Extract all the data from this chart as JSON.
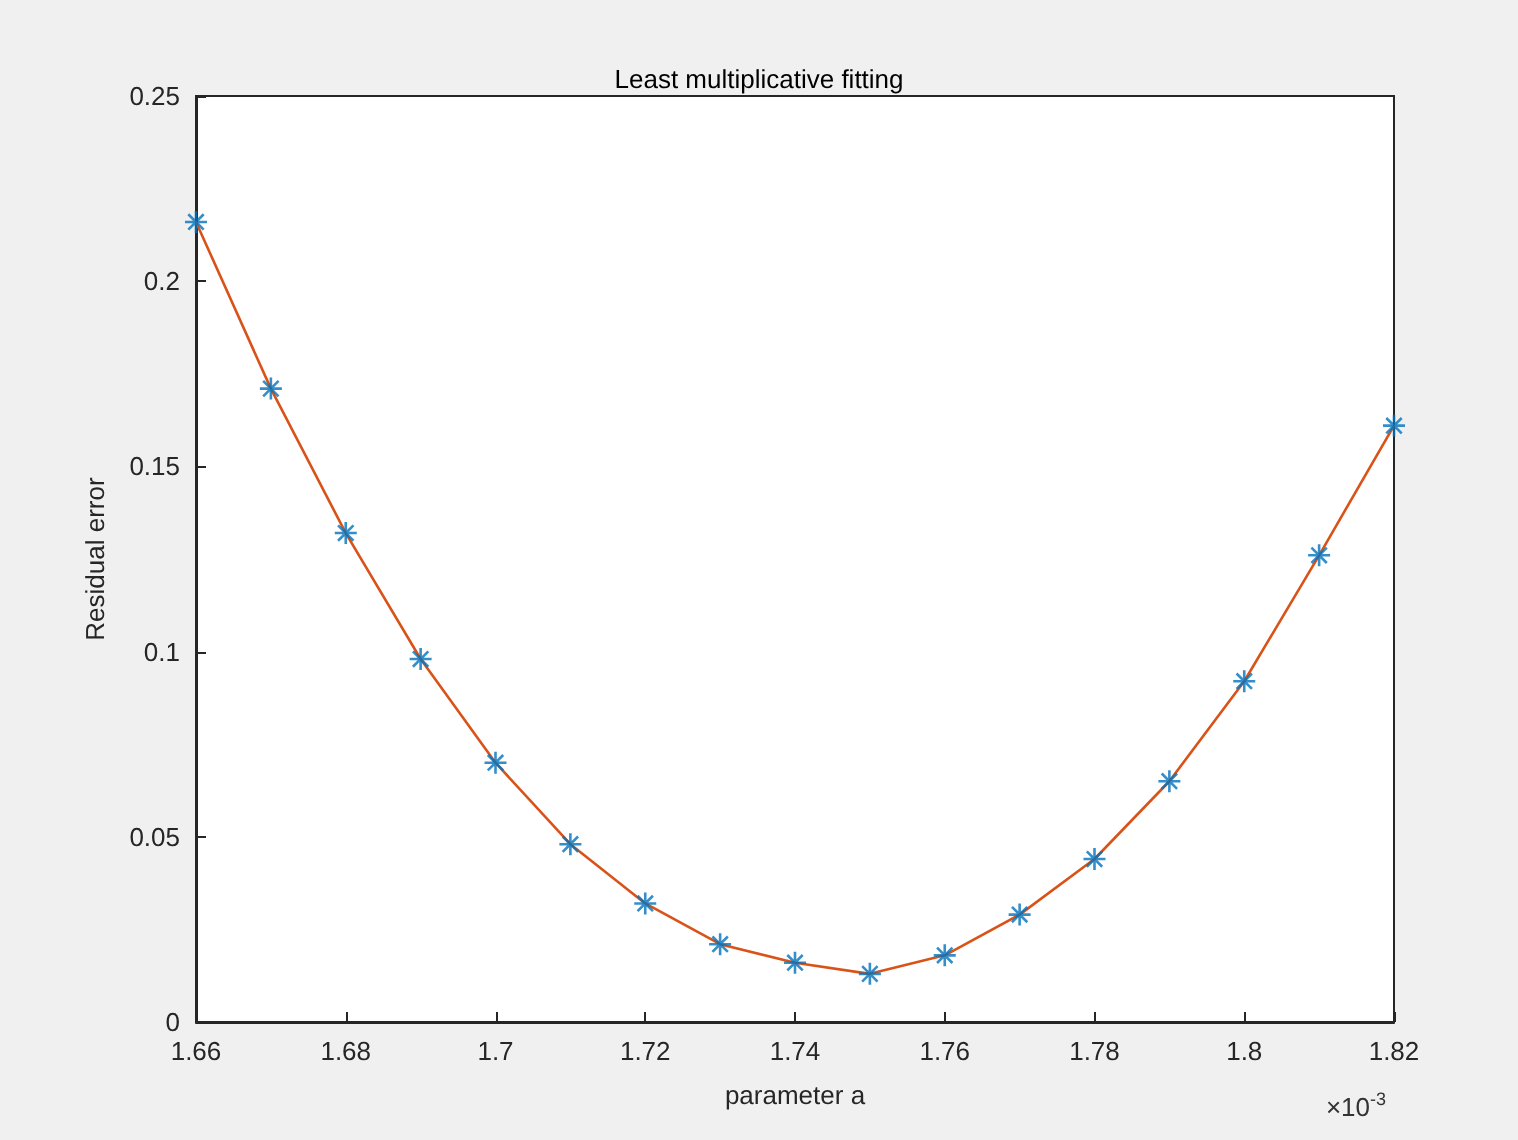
{
  "chart_data": {
    "type": "line",
    "title": "Least multiplicative fitting",
    "xlabel": "parameter a",
    "ylabel": "Residual error",
    "annotations": [
      "×10$^{-3}$"
    ],
    "x": [
      1.66,
      1.67,
      1.68,
      1.69,
      1.7,
      1.71,
      1.72,
      1.73,
      1.74,
      1.75,
      1.76,
      1.77,
      1.78,
      1.79,
      1.8,
      1.81,
      1.82
    ],
    "series": [
      {
        "type": "scatter",
        "color": "#0072bd",
        "marker": "cross",
        "values": [
          0.216,
          0.171,
          0.132,
          0.098,
          0.07,
          0.048,
          0.032,
          0.021,
          0.016,
          0.013,
          0.018,
          0.029,
          0.044,
          0.065,
          0.092,
          0.126,
          0.161
        ]
      },
      {
        "color": "#d95319",
        "marker": "none",
        "line_style": "solid",
        "values": [
          0.216,
          0.171,
          0.132,
          0.098,
          0.07,
          0.048,
          0.032,
          0.021,
          0.016,
          0.013,
          0.018,
          0.029,
          0.044,
          0.065,
          0.092,
          0.126,
          0.161
        ]
      }
    ],
    "xlim": [
      1.66,
      1.82
    ],
    "xticks": [
      1.66,
      1.68,
      1.7,
      1.72,
      1.74,
      1.76,
      1.78,
      1.8,
      1.82
    ],
    "ylim": [
      0,
      0.25
    ],
    "yticks": [
      0,
      0.05,
      0.1,
      0.15,
      0.2,
      0.25
    ],
    "grid": false
  }
}
